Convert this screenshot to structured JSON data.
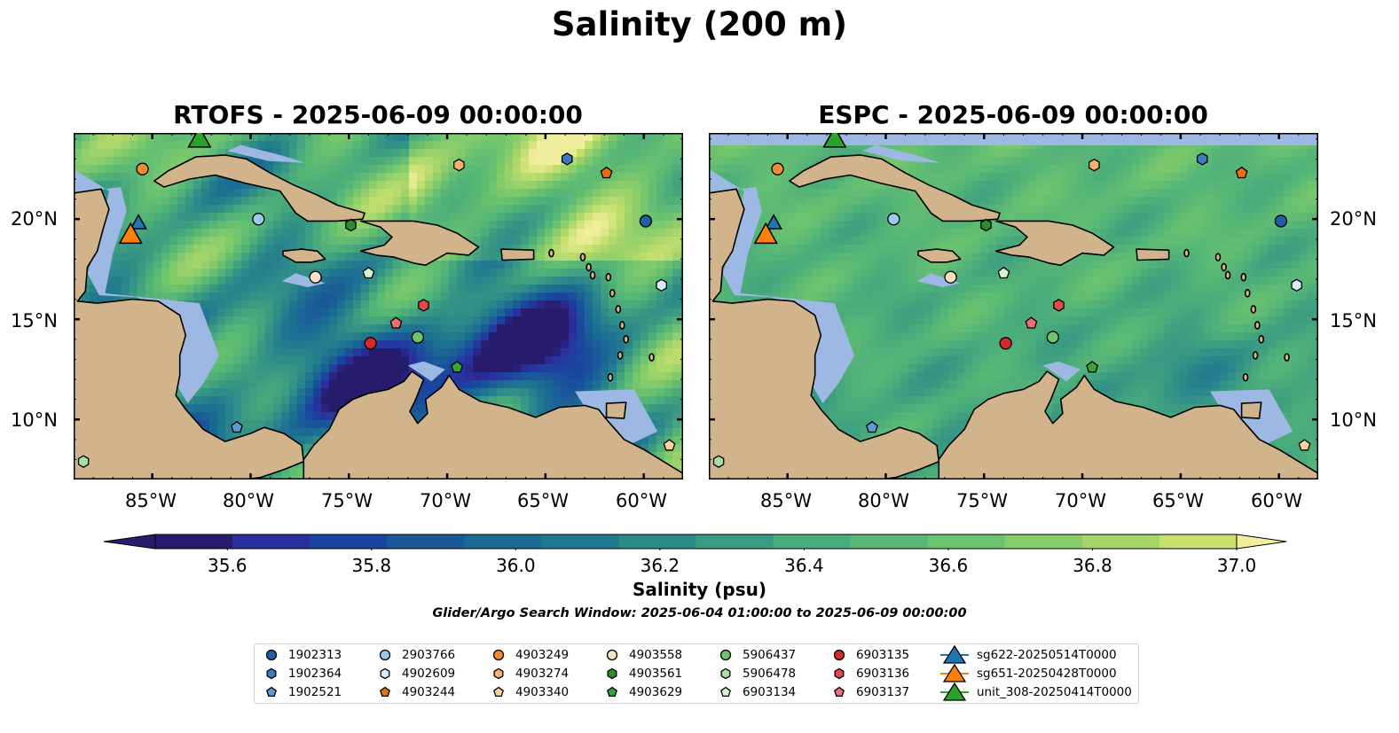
{
  "suptitle": "Salinity (200 m)",
  "panels": [
    {
      "title": "RTOFS - 2025-06-09 00:00:00",
      "model": "RTOFS"
    },
    {
      "title": "ESPC - 2025-06-09 00:00:00",
      "model": "ESPC"
    }
  ],
  "lon_ticks": [
    "85°W",
    "80°W",
    "75°W",
    "70°W",
    "65°W",
    "60°W"
  ],
  "lat_ticks": [
    "20°N",
    "15°N",
    "10°N"
  ],
  "colorbar": {
    "label": "Salinity (psu)",
    "tick_labels": [
      "35.6",
      "35.8",
      "36.0",
      "36.2",
      "36.4",
      "36.6",
      "36.8",
      "37.0"
    ],
    "ticks": [
      35.6,
      35.8,
      36.0,
      36.2,
      36.4,
      36.6,
      36.8,
      37.0
    ],
    "range": [
      35.5,
      37.0
    ],
    "extend": "both",
    "colormap": "gist_earth-like (dark blue to pale yellow)",
    "colors": [
      "#271c6b",
      "#2b2fa0",
      "#1b44a0",
      "#1a5898",
      "#1b6b93",
      "#21788f",
      "#2c8a89",
      "#3a9a82",
      "#4aab7b",
      "#5ab876",
      "#6cc36f",
      "#88cc6b",
      "#a5d56b",
      "#c8e070",
      "#f2ee9e"
    ]
  },
  "search_window": "Glider/Argo Search Window: 2025-06-04 01:00:00 to 2025-06-09 00:00:00",
  "map_colors": {
    "land": "#d2b48c",
    "shallow": "#9db8e3",
    "coast": "#000000"
  },
  "legend": {
    "items": [
      {
        "label": "1902313",
        "marker": "circle",
        "color": "#1f5fa8"
      },
      {
        "label": "1902364",
        "marker": "hexagon",
        "color": "#3a7cc0"
      },
      {
        "label": "1902521",
        "marker": "pentagon",
        "color": "#5a9bd5"
      },
      {
        "label": "2903766",
        "marker": "circle",
        "color": "#9cc8ee"
      },
      {
        "label": "4902609",
        "marker": "hexagon",
        "color": "#d6ebfa"
      },
      {
        "label": "4903244",
        "marker": "pentagon",
        "color": "#e86f0c"
      },
      {
        "label": "4903249",
        "marker": "circle",
        "color": "#f28a30"
      },
      {
        "label": "4903274",
        "marker": "hexagon",
        "color": "#f8b070"
      },
      {
        "label": "4903340",
        "marker": "pentagon",
        "color": "#fbd1a2"
      },
      {
        "label": "4903558",
        "marker": "circle",
        "color": "#fde0c2"
      },
      {
        "label": "4903561",
        "marker": "hexagon",
        "color": "#2d8a2d"
      },
      {
        "label": "4903629",
        "marker": "pentagon",
        "color": "#3aa33a"
      },
      {
        "label": "5906437",
        "marker": "circle",
        "color": "#6cc46c"
      },
      {
        "label": "5906478",
        "marker": "hexagon",
        "color": "#a7e0a0"
      },
      {
        "label": "6903134",
        "marker": "pentagon",
        "color": "#d6f3cf"
      },
      {
        "label": "6903135",
        "marker": "circle",
        "color": "#d32a2a"
      },
      {
        "label": "6903136",
        "marker": "hexagon",
        "color": "#e04a4a"
      },
      {
        "label": "6903137",
        "marker": "pentagon",
        "color": "#ee7070"
      },
      {
        "label": "sg622-20250514T0000",
        "marker": "triangle-line",
        "color": "#1f77b4"
      },
      {
        "label": "sg651-20250428T0000",
        "marker": "triangle-line",
        "color": "#ff7f0e"
      },
      {
        "label": "unit_308-20250414T0000",
        "marker": "triangle-line",
        "color": "#2ca02c"
      }
    ]
  },
  "observations": [
    {
      "id": "1902313",
      "lon": -59.9,
      "lat": 19.9
    },
    {
      "id": "1902364",
      "lon": -63.9,
      "lat": 23.0
    },
    {
      "id": "1902521",
      "lon": -80.7,
      "lat": 9.6
    },
    {
      "id": "2903766",
      "lon": -79.6,
      "lat": 20.0
    },
    {
      "id": "4902609",
      "lon": -59.1,
      "lat": 16.7
    },
    {
      "id": "4903244",
      "lon": -61.9,
      "lat": 22.3
    },
    {
      "id": "4903249",
      "lon": -85.5,
      "lat": 22.5
    },
    {
      "id": "4903274",
      "lon": -69.4,
      "lat": 22.7
    },
    {
      "id": "4903340",
      "lon": -58.7,
      "lat": 8.7
    },
    {
      "id": "4903558",
      "lon": -76.7,
      "lat": 17.1
    },
    {
      "id": "4903561",
      "lon": -74.9,
      "lat": 19.7
    },
    {
      "id": "4903629",
      "lon": -69.5,
      "lat": 12.6
    },
    {
      "id": "5906437",
      "lon": -71.5,
      "lat": 14.1
    },
    {
      "id": "5906478",
      "lon": -88.5,
      "lat": 7.9
    },
    {
      "id": "6903134",
      "lon": -74.0,
      "lat": 17.3
    },
    {
      "id": "6903135",
      "lon": -73.9,
      "lat": 13.8
    },
    {
      "id": "6903136",
      "lon": -71.2,
      "lat": 15.7
    },
    {
      "id": "6903137",
      "lon": -72.6,
      "lat": 14.8
    }
  ],
  "gliders": [
    {
      "id": "sg622-20250514T0000",
      "lon": -85.7,
      "lat": 19.8
    },
    {
      "id": "sg651-20250428T0000",
      "lon": -86.1,
      "lat": 19.2
    },
    {
      "id": "unit_308-20250414T0000",
      "lon": -82.6,
      "lat": 24.0
    }
  ]
}
